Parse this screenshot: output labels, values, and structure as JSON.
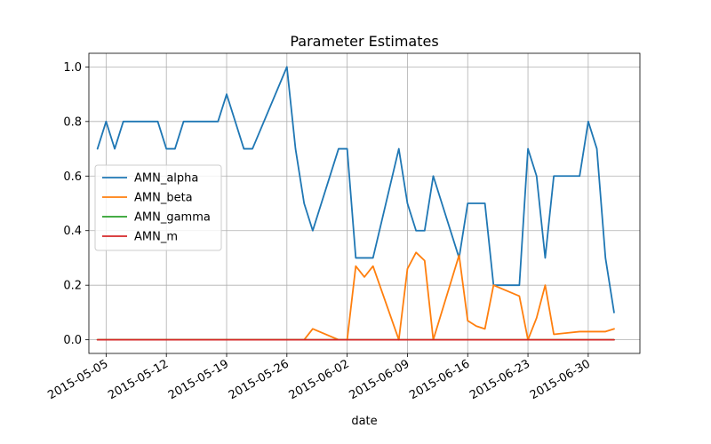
{
  "chart_data": {
    "type": "line",
    "title": "Parameter Estimates",
    "xlabel": "date",
    "ylabel": "",
    "ylim": [
      -0.05,
      1.05
    ],
    "xlim": [
      "2015-05-03",
      "2015-07-06"
    ],
    "grid": true,
    "legend_position": "center-left",
    "x_ticks": [
      "2015-05-05",
      "2015-05-12",
      "2015-05-19",
      "2015-05-26",
      "2015-06-02",
      "2015-06-09",
      "2015-06-16",
      "2015-06-23",
      "2015-06-30"
    ],
    "y_ticks": [
      0.0,
      0.2,
      0.4,
      0.6,
      0.8,
      1.0
    ],
    "y_tick_labels": [
      "0.0",
      "0.2",
      "0.4",
      "0.6",
      "0.8",
      "1.0"
    ],
    "x": [
      "2015-05-04",
      "2015-05-05",
      "2015-05-06",
      "2015-05-07",
      "2015-05-11",
      "2015-05-12",
      "2015-05-13",
      "2015-05-14",
      "2015-05-18",
      "2015-05-19",
      "2015-05-21",
      "2015-05-22",
      "2015-05-26",
      "2015-05-27",
      "2015-05-28",
      "2015-05-29",
      "2015-06-01",
      "2015-06-02",
      "2015-06-03",
      "2015-06-04",
      "2015-06-05",
      "2015-06-08",
      "2015-06-09",
      "2015-06-10",
      "2015-06-11",
      "2015-06-12",
      "2015-06-15",
      "2015-06-16",
      "2015-06-17",
      "2015-06-18",
      "2015-06-19",
      "2015-06-22",
      "2015-06-23",
      "2015-06-24",
      "2015-06-25",
      "2015-06-26",
      "2015-06-29",
      "2015-06-30",
      "2015-07-01",
      "2015-07-02",
      "2015-07-03"
    ],
    "series": [
      {
        "name": "AMN_alpha",
        "color": "#1f77b4",
        "values": [
          0.7,
          0.8,
          0.7,
          0.8,
          0.8,
          0.7,
          0.7,
          0.8,
          0.8,
          0.9,
          0.7,
          0.7,
          1.0,
          0.7,
          0.5,
          0.4,
          0.7,
          0.7,
          0.3,
          0.3,
          0.3,
          0.7,
          0.5,
          0.4,
          0.4,
          0.6,
          0.3,
          0.5,
          0.5,
          0.5,
          0.2,
          0.2,
          0.7,
          0.6,
          0.3,
          0.6,
          0.6,
          0.8,
          0.7,
          0.3,
          0.1
        ]
      },
      {
        "name": "AMN_beta",
        "color": "#ff7f0e",
        "values": [
          0,
          0,
          0,
          0,
          0,
          0,
          0,
          0,
          0,
          0,
          0,
          0,
          0,
          0,
          0,
          0.04,
          0,
          0,
          0.27,
          0.23,
          0.27,
          0,
          0.26,
          0.32,
          0.29,
          0,
          0.31,
          0.07,
          0.05,
          0.04,
          0.2,
          0.16,
          0,
          0.08,
          0.2,
          0.02,
          0.03,
          0.03,
          0.03,
          0.03,
          0.04
        ]
      },
      {
        "name": "AMN_gamma",
        "color": "#2ca02c",
        "values": [
          0,
          0,
          0,
          0,
          0,
          0,
          0,
          0,
          0,
          0,
          0,
          0,
          0,
          0,
          0,
          0,
          0,
          0,
          0,
          0,
          0,
          0,
          0,
          0,
          0,
          0,
          0,
          0,
          0,
          0,
          0,
          0,
          0,
          0,
          0,
          0,
          0,
          0,
          0,
          0,
          0
        ]
      },
      {
        "name": "AMN_m",
        "color": "#d62728",
        "values": [
          0,
          0,
          0,
          0,
          0,
          0,
          0,
          0,
          0,
          0,
          0,
          0,
          0,
          0,
          0,
          0,
          0,
          0,
          0,
          0,
          0,
          0,
          0,
          0,
          0,
          0,
          0,
          0,
          0,
          0,
          0,
          0,
          0,
          0,
          0,
          0,
          0,
          0,
          0,
          0,
          0
        ]
      }
    ]
  }
}
